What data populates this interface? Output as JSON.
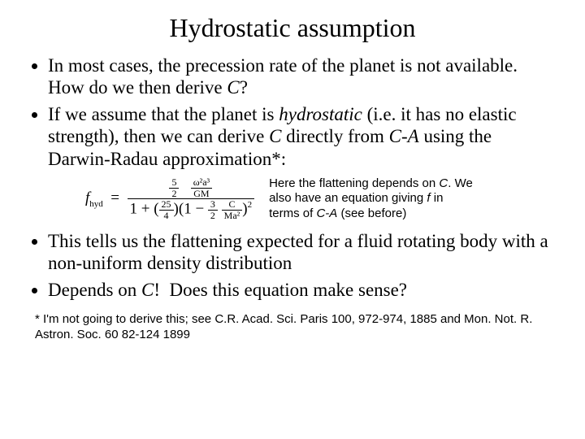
{
  "title": "Hydrostatic assumption",
  "bullets_top": [
    "In most cases, the precession rate of the planet is not available. How do we then derive C?",
    "If we assume that the planet is hydrostatic (i.e. it has no elastic strength), then we can derive C directly from C-A using the Darwin-Radau approximation*:"
  ],
  "equation_note": "Here the flattening depends on C. We also have an equation giving f in terms of C-A (see before)",
  "bullets_bottom": [
    "This tells us the flattening expected for a fluid rotating body with a non-uniform density distribution",
    "Depends on C!  Does this equation make sense?"
  ],
  "footnote": "* I'm not going to derive this; see C.R. Acad. Sci. Paris 100, 972-974, 1885 and Mon. Not. R. Astron. Soc. 60 82-124 1899",
  "style": {
    "background": "#ffffff",
    "text_color": "#000000",
    "title_fontsize": 32,
    "body_fontsize": 23,
    "note_fontsize": 15,
    "footnote_fontsize": 15,
    "body_font": "Times New Roman",
    "note_font": "Arial"
  },
  "equation": {
    "lhs_var": "f",
    "lhs_sub": "hyd",
    "numerator_coeff_num": "5",
    "numerator_coeff_den": "2",
    "numerator_frac_num": "ω²a³",
    "numerator_frac_den": "GM",
    "denom_const": "1",
    "denom_coeff_num": "25",
    "denom_coeff_den": "4",
    "denom_inner_const": "1",
    "denom_inner_coeff_num": "3",
    "denom_inner_coeff_den": "2",
    "denom_inner_frac_num": "C",
    "denom_inner_frac_den": "Ma²",
    "denom_power": "2"
  }
}
